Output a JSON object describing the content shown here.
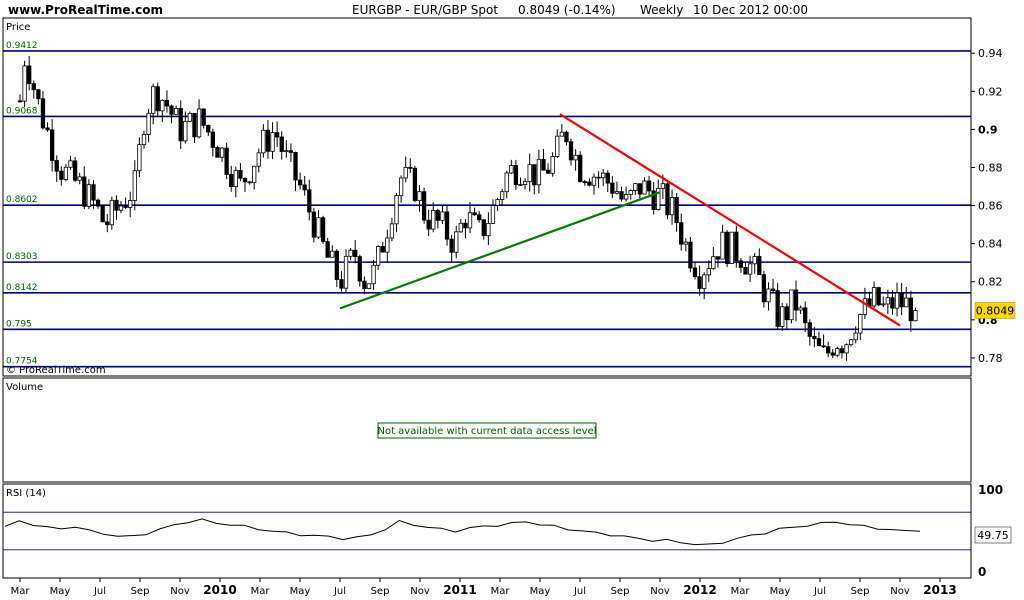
{
  "header": {
    "site": "www.ProRealTime.com",
    "title": "EURGBP - EUR/GBP Spot",
    "quote": "0.8049 (-0.14%)",
    "timeframe": "Weekly",
    "date": "10 Dec 2012 00:00"
  },
  "panels": {
    "price_label": "Price",
    "volume_label": "Volume",
    "volume_message": "Not available with current data access level",
    "rsi_label": "RSI (14)",
    "watermark": "© ProRealTime.com",
    "last_price": "0.8049",
    "last_rsi": "49.75"
  },
  "colors": {
    "level_line": "#000080",
    "downtrend": "#ff0000",
    "uptrend": "#008000",
    "last_price_badge": "#ffd700",
    "rsi_line": "#000000",
    "rsi_band": "#000080"
  },
  "x_axis": {
    "labels": [
      "Mar",
      "May",
      "Jul",
      "Sep",
      "Nov",
      "2010",
      "Mar",
      "May",
      "Jul",
      "Sep",
      "Nov",
      "2011",
      "Mar",
      "May",
      "Jul",
      "Sep",
      "Nov",
      "2012",
      "Mar",
      "May",
      "Jul",
      "Sep",
      "Nov",
      "2013"
    ],
    "year_labels": [
      "2010",
      "2011",
      "2012",
      "2013"
    ]
  },
  "chart_data": {
    "type": "candlestick",
    "instrument": "EURGBP - EUR/GBP Spot",
    "interval": "Weekly",
    "y_ticks": [
      0.78,
      0.8,
      0.82,
      0.84,
      0.86,
      0.88,
      0.9,
      0.92,
      0.94
    ],
    "ylim": [
      0.7705,
      0.9585
    ],
    "horizontal_levels": [
      {
        "label": "0.9412",
        "value": 0.9412
      },
      {
        "label": "0.9068",
        "value": 0.9068
      },
      {
        "label": "0.8602",
        "value": 0.8602
      },
      {
        "label": "0.8303",
        "value": 0.8303
      },
      {
        "label": "0.8142",
        "value": 0.8142
      },
      {
        "label": "0.795",
        "value": 0.795
      },
      {
        "label": "0.7754",
        "value": 0.7754
      }
    ],
    "trendlines": [
      {
        "color": "red",
        "from": {
          "x": "Jun 2011",
          "y": 0.908
        },
        "to": {
          "x": "Nov 2012",
          "y": 0.797
        }
      },
      {
        "color": "green",
        "from": {
          "x": "Jul 2010",
          "y": 0.806
        },
        "to": {
          "x": "Nov 2011",
          "y": 0.867
        }
      }
    ],
    "price_path": [
      [
        "Mar 2009",
        0.89
      ],
      [
        "Mar 2009",
        0.94
      ],
      [
        "Apr 2009",
        0.91
      ],
      [
        "May 2009",
        0.88
      ],
      [
        "Jun 2009",
        0.87
      ],
      [
        "Jul 2009",
        0.86
      ],
      [
        "Jul 2009",
        0.85
      ],
      [
        "Aug 2009",
        0.86
      ],
      [
        "Sep 2009",
        0.87
      ],
      [
        "Sep 2009",
        0.91
      ],
      [
        "Oct 2009",
        0.92
      ],
      [
        "Oct 2009",
        0.915
      ],
      [
        "Nov 2009",
        0.9
      ],
      [
        "Dec 2009",
        0.905
      ],
      [
        "Jan 2010",
        0.89
      ],
      [
        "Feb 2010",
        0.87
      ],
      [
        "Mar 2010",
        0.89
      ],
      [
        "Apr 2010",
        0.9
      ],
      [
        "Apr 2010",
        0.885
      ],
      [
        "May 2010",
        0.87
      ],
      [
        "Jun 2010",
        0.85
      ],
      [
        "Jun 2010",
        0.835
      ],
      [
        "Jul 2010",
        0.82
      ],
      [
        "Aug 2010",
        0.835
      ],
      [
        "Aug 2010",
        0.82
      ],
      [
        "Sep 2010",
        0.825
      ],
      [
        "Sep 2010",
        0.845
      ],
      [
        "Oct 2010",
        0.875
      ],
      [
        "Nov 2010",
        0.87
      ],
      [
        "Nov 2010",
        0.855
      ],
      [
        "Dec 2010",
        0.85
      ],
      [
        "Jan 2011",
        0.84
      ],
      [
        "Jan 2011",
        0.855
      ],
      [
        "Feb 2011",
        0.845
      ],
      [
        "Mar 2011",
        0.86
      ],
      [
        "Mar 2011",
        0.875
      ],
      [
        "Apr 2011",
        0.88
      ],
      [
        "Apr 2011",
        0.88
      ],
      [
        "May 2011",
        0.875
      ],
      [
        "Jun 2011",
        0.885
      ],
      [
        "Jun 2011",
        0.9
      ],
      [
        "Jul 2011",
        0.88
      ],
      [
        "Aug 2011",
        0.875
      ],
      [
        "Sep 2011",
        0.87
      ],
      [
        "Sep 2011",
        0.86
      ],
      [
        "Oct 2011",
        0.87
      ],
      [
        "Nov 2011",
        0.865
      ],
      [
        "Dec 2011",
        0.855
      ],
      [
        "Dec 2011",
        0.84
      ],
      [
        "Jan 2012",
        0.825
      ],
      [
        "Feb 2012",
        0.84
      ],
      [
        "Mar 2012",
        0.835
      ],
      [
        "Apr 2012",
        0.825
      ],
      [
        "Apr 2012",
        0.815
      ],
      [
        "May 2012",
        0.8
      ],
      [
        "Jun 2012",
        0.81
      ],
      [
        "Jun 2012",
        0.795
      ],
      [
        "Jul 2012",
        0.785
      ],
      [
        "Jul 2012",
        0.78
      ],
      [
        "Aug 2012",
        0.79
      ],
      [
        "Aug 2012",
        0.788
      ],
      [
        "Sep 2012",
        0.8
      ],
      [
        "Sep 2012",
        0.805
      ],
      [
        "Oct 2012",
        0.81
      ],
      [
        "Oct 2012",
        0.805
      ],
      [
        "Nov 2012",
        0.81
      ],
      [
        "Nov 2012",
        0.808
      ],
      [
        "Dec 2012",
        0.8049
      ]
    ],
    "last_value": 0.8049,
    "rsi": {
      "name": "RSI (14)",
      "ylim": [
        0,
        100
      ],
      "y_ticks": [
        0,
        100
      ],
      "band_lines": [
        70,
        30
      ],
      "last_value": 49.75,
      "values": [
        55,
        60,
        57,
        54,
        52,
        55,
        50,
        47,
        45,
        44,
        47,
        52,
        56,
        60,
        62,
        58,
        57,
        55,
        52,
        50,
        48,
        46,
        45,
        44,
        42,
        43,
        46,
        52,
        60,
        57,
        54,
        52,
        50,
        53,
        55,
        56,
        58,
        60,
        57,
        55,
        52,
        50,
        48,
        46,
        44,
        42,
        40,
        40,
        38,
        36,
        35,
        38,
        42,
        45,
        48,
        52,
        54,
        56,
        58,
        60,
        57,
        55,
        53,
        51,
        50,
        49.75
      ]
    },
    "volume": {
      "message": "Not available with current data access level"
    }
  }
}
